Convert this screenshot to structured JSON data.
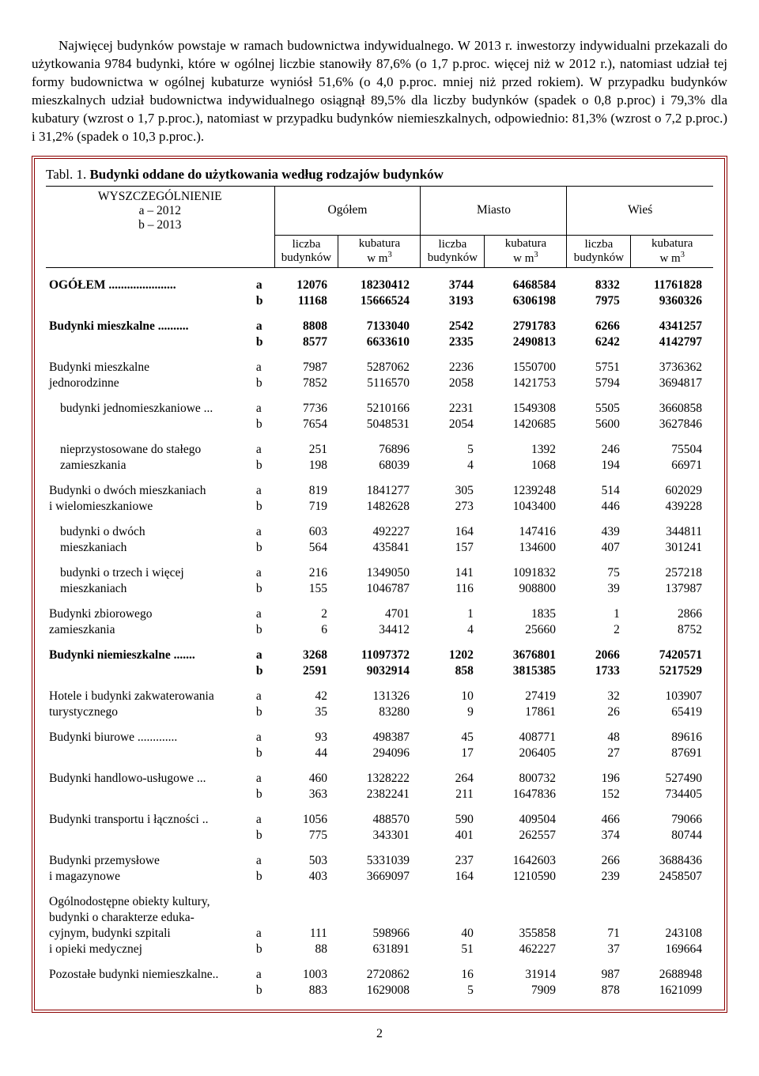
{
  "intro": "Najwięcej budynków powstaje w ramach budownictwa indywidualnego. W 2013 r. inwestorzy indywidualni przekazali do użytkowania 9784 budynki, które w ogólnej liczbie stanowiły 87,6% (o 1,7 p.proc. więcej niż w 2012 r.), natomiast udział tej formy budownictwa w ogólnej kubaturze wyniósł 51,6% (o 4,0 p.proc. mniej niż przed rokiem). W przypadku budynków mieszkalnych udział budownictwa indywidualnego osiągnął 89,5% dla liczby budynków (spadek o 0,8 p.proc) i 79,3% dla kubatury (wzrost o 1,7 p.proc.), natomiast w przypadku budynków niemieszkalnych, odpowiednio: 81,3% (wzrost o 7,2 p.proc.) i 31,2% (spadek o 10,3 p.proc.).",
  "table": {
    "caption_label": "Tabl. 1.",
    "caption_text": "Budynki oddane do użytkowania według rodzajów budynków",
    "spec_header": "WYSZCZEGÓLNIENIE",
    "spec_sub_a": "a – 2012",
    "spec_sub_b": "b – 2013",
    "groups": [
      "Ogółem",
      "Miasto",
      "Wieś"
    ],
    "sub_liczba": "liczba\nbudynków",
    "sub_kubatura": "kubatura\nw m",
    "rows": [
      {
        "label": "OGÓŁEM",
        "dots": true,
        "bold": true,
        "indent": 0,
        "a": [
          "12076",
          "18230412",
          "3744",
          "6468584",
          "8332",
          "11761828"
        ],
        "b": [
          "11168",
          "15666524",
          "3193",
          "6306198",
          "7975",
          "9360326"
        ]
      },
      {
        "label": "Budynki mieszkalne",
        "dots": true,
        "bold": true,
        "indent": 0,
        "a": [
          "8808",
          "7133040",
          "2542",
          "2791783",
          "6266",
          "4341257"
        ],
        "b": [
          "8577",
          "6633610",
          "2335",
          "2490813",
          "6242",
          "4142797"
        ]
      },
      {
        "label": "Budynki mieszkalne\n  jednorodzinne",
        "dots": false,
        "bold": false,
        "indent": 0,
        "a": [
          "7987",
          "5287062",
          "2236",
          "1550700",
          "5751",
          "3736362"
        ],
        "b": [
          "7852",
          "5116570",
          "2058",
          "1421753",
          "5794",
          "3694817"
        ]
      },
      {
        "label": "budynki jednomieszkaniowe",
        "dots": true,
        "bold": false,
        "indent": 1,
        "a": [
          "7736",
          "5210166",
          "2231",
          "1549308",
          "5505",
          "3660858"
        ],
        "b": [
          "7654",
          "5048531",
          "2054",
          "1420685",
          "5600",
          "3627846"
        ]
      },
      {
        "label": "nieprzystosowane do stałego\nzamieszkania",
        "dots": false,
        "bold": false,
        "indent": 1,
        "a": [
          "251",
          "76896",
          "5",
          "1392",
          "246",
          "75504"
        ],
        "b": [
          "198",
          "68039",
          "4",
          "1068",
          "194",
          "66971"
        ]
      },
      {
        "label": "Budynki o dwóch mieszkaniach\n  i wielomieszkaniowe",
        "dots": false,
        "bold": false,
        "indent": 0,
        "a": [
          "819",
          "1841277",
          "305",
          "1239248",
          "514",
          "602029"
        ],
        "b": [
          "719",
          "1482628",
          "273",
          "1043400",
          "446",
          "439228"
        ]
      },
      {
        "label": "budynki o dwóch\nmieszkaniach",
        "dots": false,
        "bold": false,
        "indent": 1,
        "a": [
          "603",
          "492227",
          "164",
          "147416",
          "439",
          "344811"
        ],
        "b": [
          "564",
          "435841",
          "157",
          "134600",
          "407",
          "301241"
        ]
      },
      {
        "label": "budynki o trzech i więcej\nmieszkaniach",
        "dots": false,
        "bold": false,
        "indent": 1,
        "a": [
          "216",
          "1349050",
          "141",
          "1091832",
          "75",
          "257218"
        ],
        "b": [
          "155",
          "1046787",
          "116",
          "908800",
          "39",
          "137987"
        ]
      },
      {
        "label": "Budynki zbiorowego\n  zamieszkania",
        "dots": false,
        "bold": false,
        "indent": 0,
        "a": [
          "2",
          "4701",
          "1",
          "1835",
          "1",
          "2866"
        ],
        "b": [
          "6",
          "34412",
          "4",
          "25660",
          "2",
          "8752"
        ]
      },
      {
        "label": "Budynki niemieszkalne",
        "dots": true,
        "bold": true,
        "indent": 0,
        "a": [
          "3268",
          "11097372",
          "1202",
          "3676801",
          "2066",
          "7420571"
        ],
        "b": [
          "2591",
          "9032914",
          "858",
          "3815385",
          "1733",
          "5217529"
        ]
      },
      {
        "label": "Hotele i budynki zakwaterowania\n  turystycznego",
        "dots": false,
        "bold": false,
        "indent": 0,
        "a": [
          "42",
          "131326",
          "10",
          "27419",
          "32",
          "103907"
        ],
        "b": [
          "35",
          "83280",
          "9",
          "17861",
          "26",
          "65419"
        ]
      },
      {
        "label": "Budynki biurowe",
        "dots": true,
        "bold": false,
        "indent": 0,
        "a": [
          "93",
          "498387",
          "45",
          "408771",
          "48",
          "89616"
        ],
        "b": [
          "44",
          "294096",
          "17",
          "206405",
          "27",
          "87691"
        ]
      },
      {
        "label": "Budynki handlowo-usługowe",
        "dots": true,
        "bold": false,
        "indent": 0,
        "a": [
          "460",
          "1328222",
          "264",
          "800732",
          "196",
          "527490"
        ],
        "b": [
          "363",
          "2382241",
          "211",
          "1647836",
          "152",
          "734405"
        ]
      },
      {
        "label": "Budynki transportu i łączności",
        "dots": true,
        "bold": false,
        "indent": 0,
        "a": [
          "1056",
          "488570",
          "590",
          "409504",
          "466",
          "79066"
        ],
        "b": [
          "775",
          "343301",
          "401",
          "262557",
          "374",
          "80744"
        ]
      },
      {
        "label": "Budynki przemysłowe\n  i magazynowe",
        "dots": false,
        "bold": false,
        "indent": 0,
        "a": [
          "503",
          "5331039",
          "237",
          "1642603",
          "266",
          "3688436"
        ],
        "b": [
          "403",
          "3669097",
          "164",
          "1210590",
          "239",
          "2458507"
        ]
      },
      {
        "label": "Ogólnodostępne obiekty kultury,\n  budynki o charakterze eduka-\n  cyjnym, budynki szpitali\n  i opieki medycznej",
        "dots": false,
        "bold": false,
        "indent": 0,
        "multi": 4,
        "a": [
          "111",
          "598966",
          "40",
          "355858",
          "71",
          "243108"
        ],
        "b": [
          "88",
          "631891",
          "51",
          "462227",
          "37",
          "169664"
        ]
      },
      {
        "label": "Pozostałe budynki niemieszkalne",
        "dots": true,
        "bold": false,
        "indent": 0,
        "lastdots": "..",
        "a": [
          "1003",
          "2720862",
          "16",
          "31914",
          "987",
          "2688948"
        ],
        "b": [
          "883",
          "1629008",
          "5",
          "7909",
          "878",
          "1621099"
        ]
      }
    ]
  },
  "page_number": "2"
}
